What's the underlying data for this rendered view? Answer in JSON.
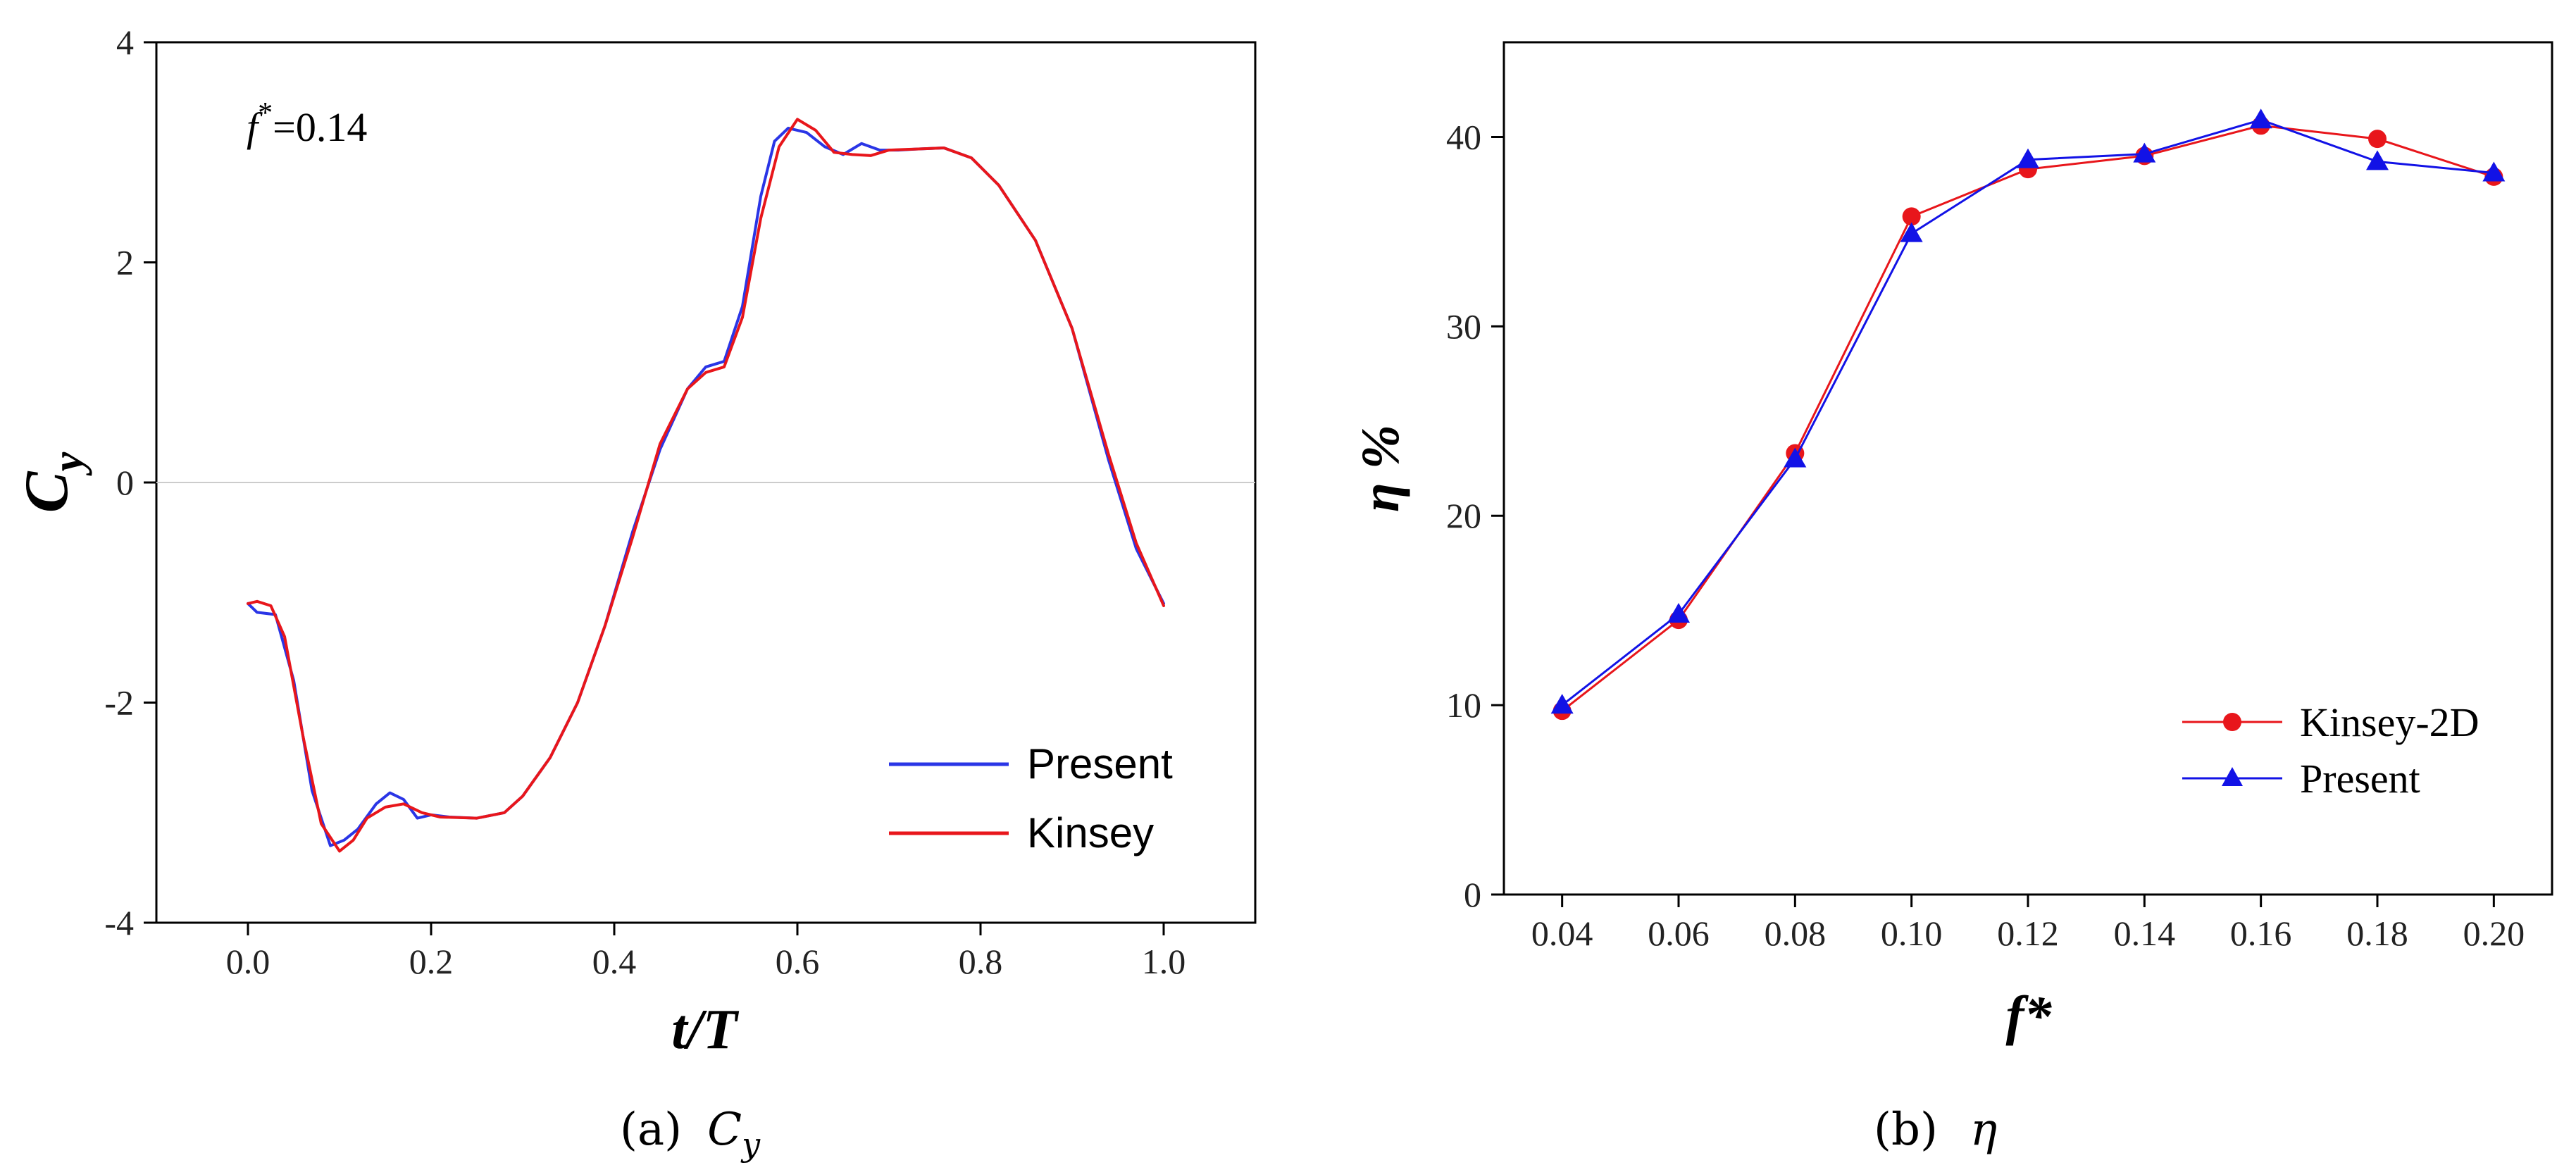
{
  "chart_data": [
    {
      "type": "line",
      "caption_letter": "(a)",
      "caption_symbol": "C",
      "caption_subscript": "y",
      "ylabel_main": "C",
      "ylabel_sub": "y",
      "xlabel": "t/T",
      "annotation_base": "f",
      "annotation_sup": "*",
      "annotation_value": "=0.14",
      "xlim": [
        -0.1,
        1.1
      ],
      "ylim": [
        -4,
        4
      ],
      "xticks": [
        0.0,
        0.2,
        0.4,
        0.6,
        0.8,
        1.0
      ],
      "xtick_labels": [
        "0.0",
        "0.2",
        "0.4",
        "0.6",
        "0.8",
        "1.0"
      ],
      "yticks": [
        -4,
        -2,
        0,
        2,
        4
      ],
      "ytick_labels": [
        "-4",
        "-2",
        "0",
        "2",
        "4"
      ],
      "zero_line": true,
      "grid": false,
      "legend_position": "lower-right",
      "series": [
        {
          "name": "Present",
          "color": "#2a35e6",
          "x": [
            0.0,
            0.01,
            0.03,
            0.05,
            0.07,
            0.09,
            0.105,
            0.12,
            0.14,
            0.155,
            0.17,
            0.185,
            0.2,
            0.22,
            0.25,
            0.28,
            0.3,
            0.33,
            0.36,
            0.39,
            0.42,
            0.45,
            0.48,
            0.5,
            0.52,
            0.54,
            0.56,
            0.575,
            0.59,
            0.61,
            0.63,
            0.65,
            0.67,
            0.69,
            0.71,
            0.73,
            0.76,
            0.79,
            0.82,
            0.86,
            0.9,
            0.94,
            0.97,
            1.0
          ],
          "y": [
            -1.1,
            -1.18,
            -1.2,
            -1.8,
            -2.8,
            -3.3,
            -3.25,
            -3.15,
            -2.92,
            -2.82,
            -2.88,
            -3.05,
            -3.02,
            -3.04,
            -3.05,
            -3.0,
            -2.85,
            -2.5,
            -2.0,
            -1.3,
            -0.45,
            0.3,
            0.85,
            1.05,
            1.1,
            1.6,
            2.6,
            3.1,
            3.22,
            3.18,
            3.05,
            2.98,
            3.08,
            3.02,
            3.02,
            3.03,
            3.04,
            2.95,
            2.7,
            2.2,
            1.4,
            0.2,
            -0.6,
            -1.1
          ]
        },
        {
          "name": "Kinsey",
          "color": "#e8161b",
          "x": [
            0.0,
            0.01,
            0.025,
            0.04,
            0.06,
            0.08,
            0.1,
            0.115,
            0.13,
            0.15,
            0.17,
            0.19,
            0.21,
            0.25,
            0.28,
            0.3,
            0.33,
            0.36,
            0.39,
            0.42,
            0.45,
            0.48,
            0.5,
            0.52,
            0.54,
            0.56,
            0.58,
            0.6,
            0.62,
            0.64,
            0.66,
            0.68,
            0.7,
            0.73,
            0.76,
            0.79,
            0.82,
            0.86,
            0.9,
            0.94,
            0.97,
            1.0
          ],
          "y": [
            -1.1,
            -1.08,
            -1.12,
            -1.4,
            -2.3,
            -3.1,
            -3.35,
            -3.25,
            -3.05,
            -2.95,
            -2.92,
            -3.0,
            -3.04,
            -3.05,
            -3.0,
            -2.85,
            -2.5,
            -2.0,
            -1.3,
            -0.5,
            0.35,
            0.85,
            1.0,
            1.05,
            1.5,
            2.4,
            3.05,
            3.3,
            3.2,
            3.0,
            2.98,
            2.97,
            3.02,
            3.03,
            3.04,
            2.95,
            2.7,
            2.2,
            1.4,
            0.25,
            -0.55,
            -1.12
          ]
        }
      ]
    },
    {
      "type": "line",
      "caption_letter": "(b)",
      "caption_symbol": "η",
      "ylabel": "η %",
      "xlabel": "f*",
      "xlim": [
        0.03,
        0.21
      ],
      "ylim": [
        0,
        45
      ],
      "xticks": [
        0.04,
        0.06,
        0.08,
        0.1,
        0.12,
        0.14,
        0.16,
        0.18,
        0.2
      ],
      "xtick_labels": [
        "0.04",
        "0.06",
        "0.08",
        "0.10",
        "0.12",
        "0.14",
        "0.16",
        "0.18",
        "0.20"
      ],
      "yticks": [
        0,
        10,
        20,
        30,
        40
      ],
      "ytick_labels": [
        "0",
        "10",
        "20",
        "30",
        "40"
      ],
      "grid": false,
      "legend_position": "lower-right",
      "series": [
        {
          "name": "Kinsey-2D",
          "color": "#e8161b",
          "marker": "circle",
          "x": [
            0.04,
            0.06,
            0.08,
            0.1,
            0.12,
            0.14,
            0.16,
            0.18,
            0.2
          ],
          "y": [
            9.7,
            14.5,
            23.3,
            35.8,
            38.3,
            39.0,
            40.6,
            39.9,
            37.9
          ]
        },
        {
          "name": "Present",
          "color": "#1212e6",
          "marker": "triangle",
          "x": [
            0.04,
            0.06,
            0.08,
            0.1,
            0.12,
            0.14,
            0.16,
            0.18,
            0.2
          ],
          "y": [
            10.0,
            14.8,
            23.0,
            34.9,
            38.8,
            39.1,
            40.9,
            38.7,
            38.1
          ]
        }
      ]
    }
  ]
}
